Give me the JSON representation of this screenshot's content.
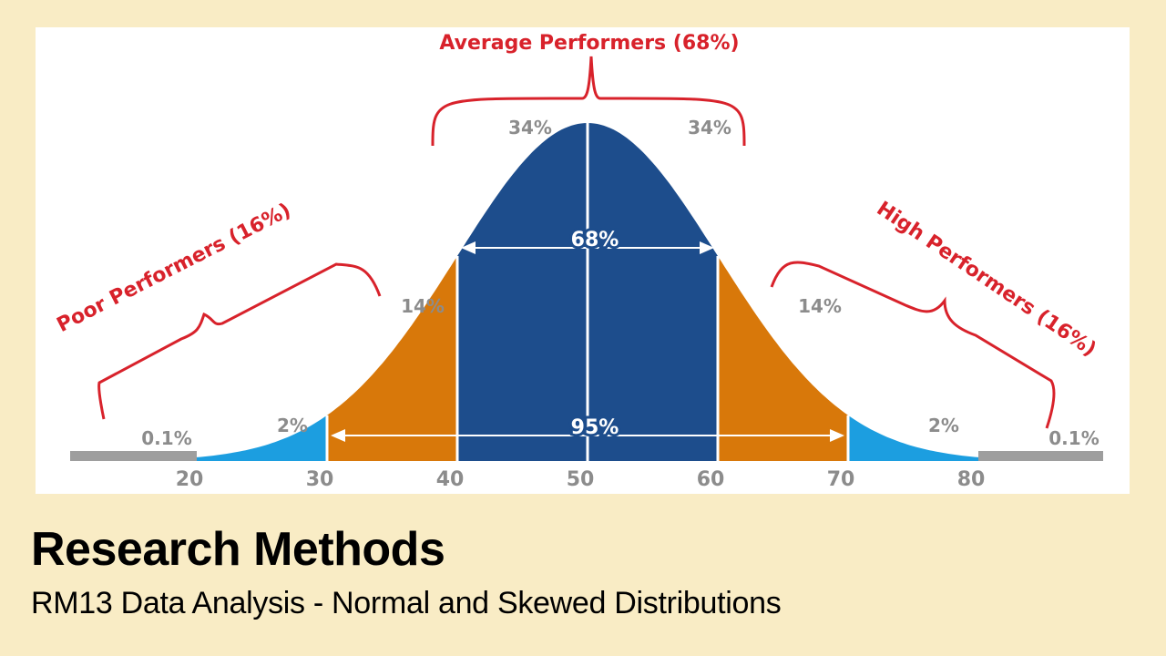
{
  "colors": {
    "background": "#f9ecc5",
    "panel": "#ffffff",
    "center_band": "#1d4d8c",
    "mid_band": "#d8780a",
    "outer_band": "#1c9ee0",
    "tail_band": "#9e9e9e",
    "annotation": "#d8222b",
    "tick_text": "#8c8c8c"
  },
  "chart_data": {
    "type": "area",
    "distribution": "normal",
    "mean": 50,
    "sd": 10,
    "x_ticks": [
      "20",
      "30",
      "40",
      "50",
      "60",
      "70",
      "80"
    ],
    "xlim": [
      20,
      80
    ],
    "bands": [
      {
        "name": "tail-left",
        "from": 10,
        "to": 20,
        "color": "#9e9e9e",
        "label": "0.1%"
      },
      {
        "name": "outer-left",
        "from": 20,
        "to": 30,
        "color": "#1c9ee0",
        "label": "2%"
      },
      {
        "name": "mid-left",
        "from": 30,
        "to": 40,
        "color": "#d8780a",
        "label": "14%"
      },
      {
        "name": "center-left",
        "from": 40,
        "to": 50,
        "color": "#1d4d8c",
        "label": "34%"
      },
      {
        "name": "center-right",
        "from": 50,
        "to": 60,
        "color": "#1d4d8c",
        "label": "34%"
      },
      {
        "name": "mid-right",
        "from": 60,
        "to": 70,
        "color": "#d8780a",
        "label": "14%"
      },
      {
        "name": "outer-right",
        "from": 70,
        "to": 80,
        "color": "#1c9ee0",
        "label": "2%"
      },
      {
        "name": "tail-right",
        "from": 80,
        "to": 90,
        "color": "#9e9e9e",
        "label": "0.1%"
      }
    ],
    "span_arrows": [
      {
        "from": 40,
        "to": 60,
        "label": "68%"
      },
      {
        "from": 30,
        "to": 70,
        "label": "95%"
      }
    ],
    "group_annotations": [
      {
        "label": "Average Performers (68%)"
      },
      {
        "label": "Poor Performers (16%)"
      },
      {
        "label": "High Performers (16%)"
      }
    ],
    "grid": false,
    "legend": "none"
  },
  "footer": {
    "title": "Research Methods",
    "subtitle": "RM13 Data Analysis - Normal and Skewed Distributions"
  }
}
